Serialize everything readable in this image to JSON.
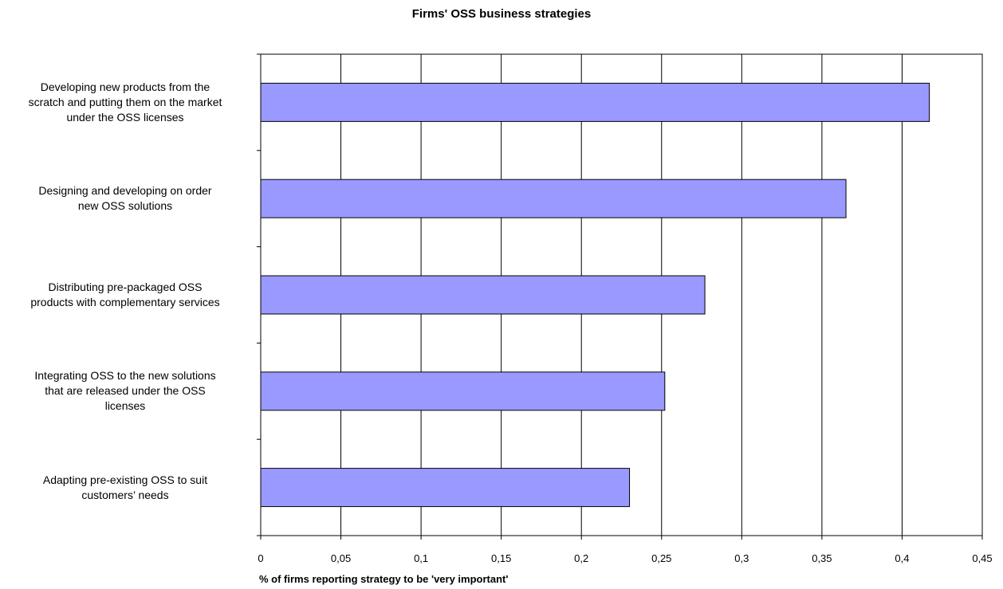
{
  "chart_data": {
    "type": "bar",
    "orientation": "horizontal",
    "title": "Firms' OSS business strategies",
    "xlabel": "% of firms reporting strategy to be 'very important'",
    "ylabel": "",
    "categories": [
      "Developing new products from the scratch and putting them on the market under the OSS licenses",
      "Designing and developing on order new OSS solutions",
      "Distributing pre-packaged OSS products with complementary services",
      "Integrating OSS to the new solutions that are released under the OSS licenses",
      "Adapting pre-existing OSS to suit customers’ needs"
    ],
    "category_lines": [
      [
        "Developing new products from the",
        "scratch and putting them on the market",
        "under the OSS licenses"
      ],
      [
        "Designing and developing on order",
        "new OSS solutions"
      ],
      [
        "Distributing pre-packaged OSS",
        "products with complementary services"
      ],
      [
        "Integrating OSS to the new solutions",
        "that are released under the OSS",
        "licenses"
      ],
      [
        "Adapting pre-existing OSS to suit",
        "customers’ needs"
      ]
    ],
    "values": [
      0.417,
      0.365,
      0.277,
      0.252,
      0.23
    ],
    "xlim": [
      0,
      0.45
    ],
    "xticks": [
      "0",
      "0,05",
      "0,1",
      "0,15",
      "0,2",
      "0,25",
      "0,3",
      "0,35",
      "0,4",
      "0,45"
    ],
    "grid": true,
    "legend": "none",
    "bar_color": "#9999ff",
    "bar_edge_color": "#000000"
  }
}
